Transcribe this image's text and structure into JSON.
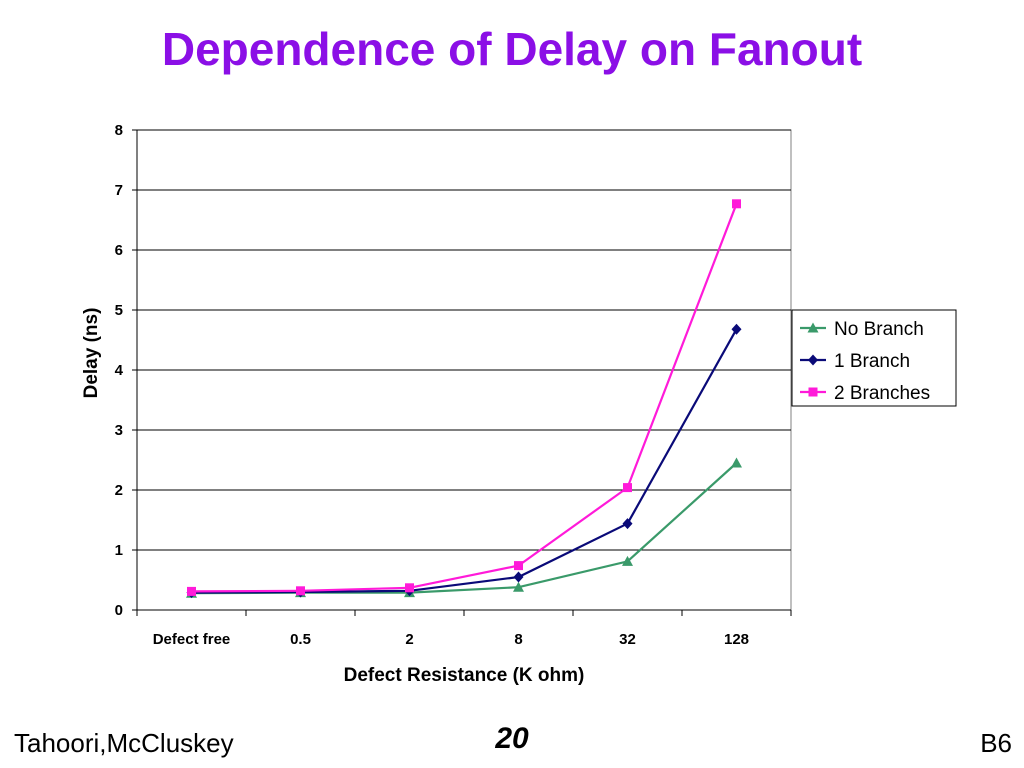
{
  "slide": {
    "title": "Dependence of Delay on Fanout",
    "footer_left": "Tahoori,McCluskey",
    "page_number": "20",
    "footer_right": "B6"
  },
  "chart_data": {
    "type": "line",
    "xlabel": "Defect Resistance (K ohm)",
    "ylabel": "Delay (ns)",
    "categories": [
      "Defect free",
      "0.5",
      "2",
      "8",
      "32",
      "128"
    ],
    "ylim": [
      0,
      8
    ],
    "yticks": [
      0,
      1,
      2,
      3,
      4,
      5,
      6,
      7,
      8
    ],
    "grid": true,
    "legend_position": "right",
    "series": [
      {
        "name": "No Branch",
        "color": "#3a9a6a",
        "marker": "triangle",
        "values": [
          0.28,
          0.29,
          0.29,
          0.38,
          0.81,
          2.45
        ]
      },
      {
        "name": "1 Branch",
        "color": "#0a0a78",
        "marker": "diamond",
        "values": [
          0.29,
          0.3,
          0.32,
          0.55,
          1.44,
          4.68
        ]
      },
      {
        "name": "2 Branches",
        "color": "#ff1ad9",
        "marker": "square",
        "values": [
          0.31,
          0.32,
          0.37,
          0.74,
          2.04,
          6.77
        ]
      }
    ]
  }
}
